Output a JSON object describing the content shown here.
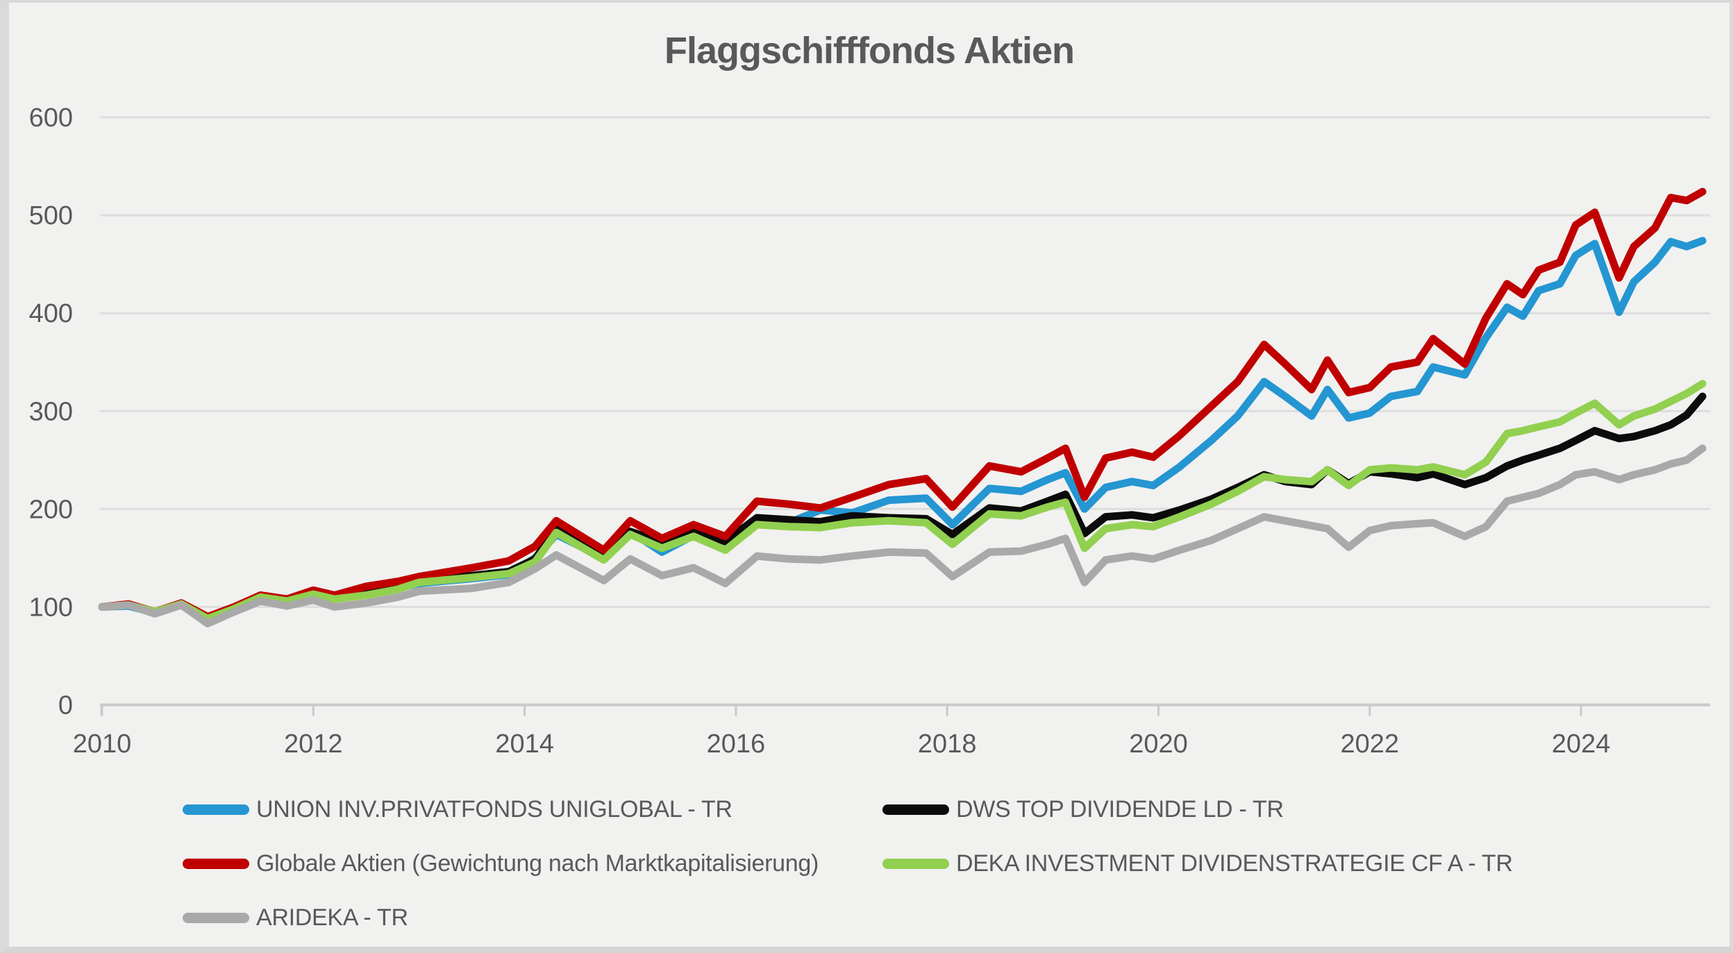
{
  "title": "Flaggschifffonds Aktien",
  "colors": {
    "blue": "#2496d2",
    "black": "#0b0b0b",
    "red": "#c00000",
    "green": "#92d050",
    "gray": "#a9a9a9",
    "text": "#595959",
    "gridline": "#dddddd",
    "axis": "#c9c9c9",
    "background": "#f1f1f0"
  },
  "legend": {
    "items": [
      {
        "label": "UNION INV.PRIVATFONDS UNIGLOBAL - TR",
        "color": "blue"
      },
      {
        "label": "DWS TOP DIVIDENDE LD - TR",
        "color": "black"
      },
      {
        "label": "Globale Aktien (Gewichtung nach Marktkapitalisierung)",
        "color": "red"
      },
      {
        "label": "DEKA INVESTMENT DIVIDENSTRATEGIE CF A - TR",
        "color": "green"
      },
      {
        "label": "ARIDEKA - TR",
        "color": "gray"
      }
    ]
  },
  "chart_data": {
    "type": "line",
    "title": "Flaggschifffonds Aktien",
    "xlabel": "",
    "ylabel": "",
    "x_ticks": [
      2010,
      2012,
      2014,
      2016,
      2018,
      2020,
      2022,
      2024
    ],
    "y_ticks": [
      0,
      100,
      200,
      300,
      400,
      500,
      600
    ],
    "ylim": [
      0,
      600
    ],
    "xlim": [
      2010,
      2025.2
    ],
    "grid": true,
    "legend_position": "bottom",
    "baseline_value": 100,
    "x": [
      2010.0,
      2010.25,
      2010.5,
      2010.75,
      2011.0,
      2011.25,
      2011.5,
      2011.75,
      2012.0,
      2012.2,
      2012.5,
      2012.8,
      2013.0,
      2013.5,
      2013.85,
      2014.1,
      2014.3,
      2014.75,
      2015.0,
      2015.3,
      2015.6,
      2015.9,
      2016.2,
      2016.5,
      2016.8,
      2017.1,
      2017.45,
      2017.8,
      2018.05,
      2018.4,
      2018.7,
      2018.95,
      2019.12,
      2019.3,
      2019.5,
      2019.75,
      2019.95,
      2020.2,
      2020.5,
      2020.75,
      2021.0,
      2021.2,
      2021.45,
      2021.6,
      2021.8,
      2022.0,
      2022.2,
      2022.45,
      2022.6,
      2022.9,
      2023.1,
      2023.3,
      2023.45,
      2023.6,
      2023.8,
      2023.95,
      2024.13,
      2024.36,
      2024.5,
      2024.7,
      2024.85,
      2025.0,
      2025.15
    ],
    "series": [
      {
        "name": "UNION INV.PRIVATFONDS UNIGLOBAL - TR",
        "color": "blue",
        "values": [
          100,
          101,
          94,
          102,
          88,
          97,
          108,
          104,
          112,
          108,
          114,
          119,
          124,
          129,
          133,
          150,
          174,
          150,
          177,
          156,
          173,
          165,
          185,
          186,
          199,
          196,
          209,
          211,
          184,
          221,
          218,
          230,
          237,
          200,
          222,
          228,
          224,
          243,
          270,
          295,
          330,
          315,
          295,
          322,
          293,
          298,
          315,
          320,
          345,
          337,
          375,
          406,
          397,
          423,
          430,
          459,
          471,
          401,
          432,
          452,
          473,
          468,
          474
        ]
      },
      {
        "name": "DWS TOP DIVIDENDE LD - TR",
        "color": "black",
        "values": [
          100,
          102,
          95,
          103,
          89,
          99,
          111,
          107,
          115,
          111,
          116,
          121,
          128,
          132,
          136,
          149,
          180,
          152,
          177,
          166,
          176,
          167,
          191,
          189,
          187,
          193,
          191,
          190,
          174,
          201,
          198,
          208,
          215,
          175,
          192,
          194,
          191,
          199,
          210,
          222,
          235,
          228,
          225,
          240,
          226,
          238,
          236,
          232,
          236,
          225,
          232,
          244,
          250,
          255,
          262,
          270,
          280,
          272,
          274,
          280,
          286,
          296,
          315
        ]
      },
      {
        "name": "Globale Aktien (Gewichtung nach Marktkapitalisierung)",
        "color": "red",
        "values": [
          100,
          103,
          95,
          104,
          90,
          100,
          112,
          108,
          117,
          112,
          121,
          126,
          131,
          140,
          147,
          162,
          188,
          158,
          188,
          170,
          184,
          172,
          208,
          205,
          201,
          212,
          225,
          231,
          202,
          244,
          238,
          252,
          262,
          212,
          252,
          258,
          253,
          275,
          305,
          330,
          368,
          348,
          322,
          352,
          319,
          324,
          345,
          350,
          374,
          348,
          395,
          430,
          419,
          444,
          452,
          490,
          503,
          436,
          468,
          487,
          518,
          515,
          524
        ]
      },
      {
        "name": "DEKA INVESTMENT DIVIDENSTRATEGIE CF A - TR",
        "color": "green",
        "values": [
          100,
          102,
          95,
          103,
          88,
          98,
          110,
          106,
          113,
          108,
          112,
          118,
          125,
          130,
          134,
          146,
          176,
          148,
          174,
          160,
          172,
          158,
          184,
          182,
          181,
          186,
          188,
          186,
          164,
          195,
          193,
          202,
          207,
          160,
          180,
          184,
          182,
          192,
          205,
          218,
          233,
          230,
          228,
          240,
          224,
          240,
          242,
          240,
          243,
          235,
          248,
          277,
          280,
          284,
          289,
          298,
          308,
          286,
          295,
          302,
          310,
          318,
          328
        ]
      },
      {
        "name": "ARIDEKA - TR",
        "color": "gray",
        "values": [
          100,
          102,
          93,
          102,
          83,
          95,
          106,
          101,
          107,
          100,
          104,
          110,
          116,
          119,
          125,
          139,
          153,
          127,
          149,
          132,
          140,
          124,
          152,
          149,
          148,
          152,
          156,
          155,
          131,
          156,
          157,
          164,
          170,
          125,
          148,
          152,
          149,
          158,
          168,
          180,
          192,
          188,
          183,
          180,
          161,
          178,
          183,
          185,
          186,
          172,
          182,
          208,
          212,
          216,
          225,
          235,
          238,
          230,
          235,
          240,
          246,
          250,
          262
        ]
      }
    ]
  }
}
